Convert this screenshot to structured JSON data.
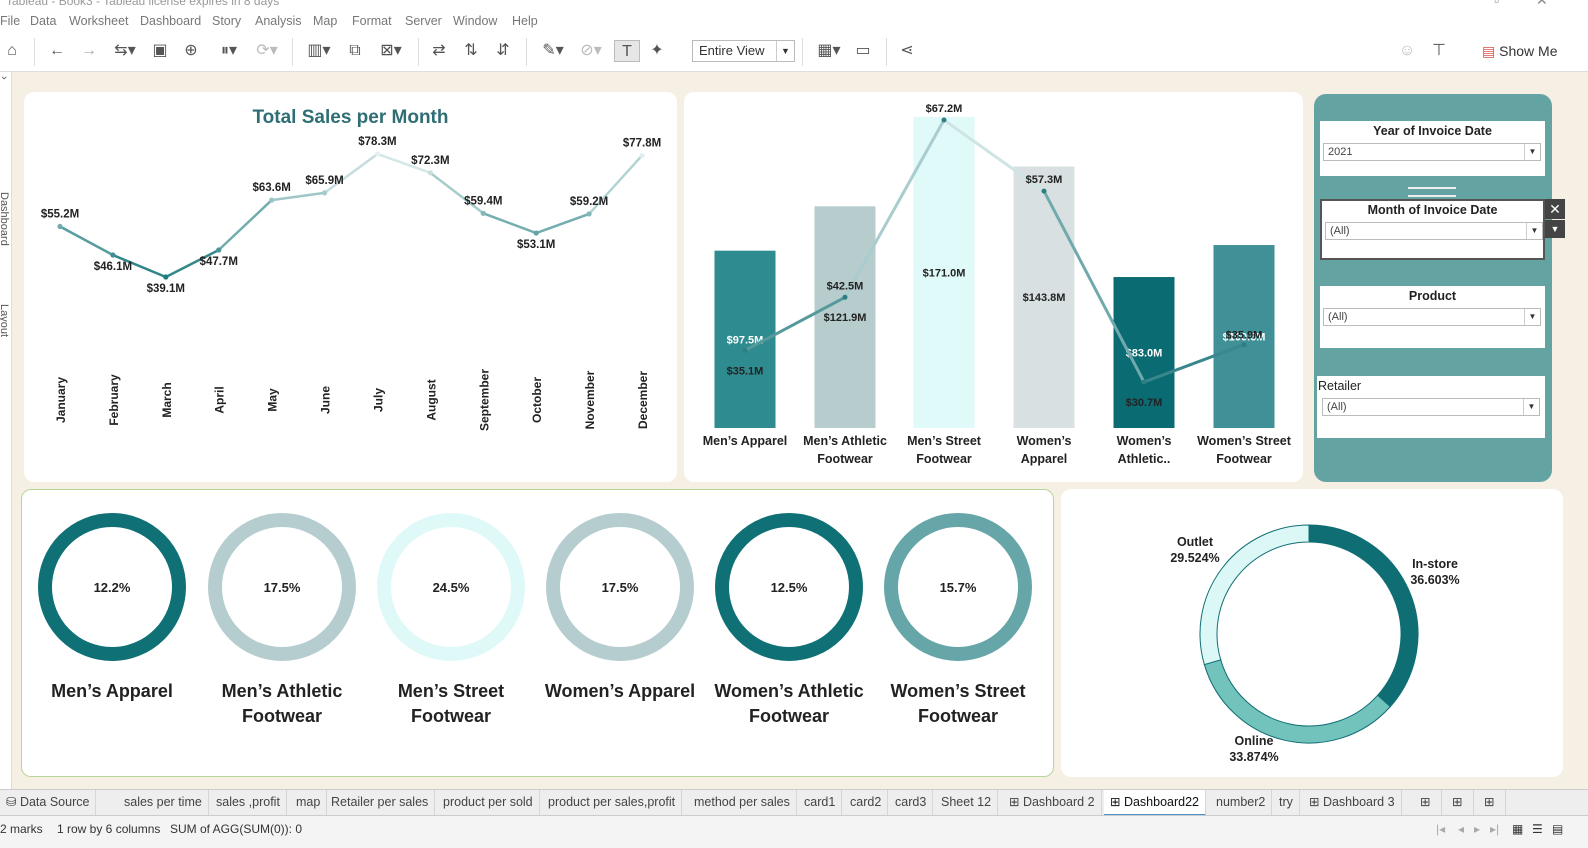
{
  "window": {
    "title": "Tableau - Book3 - Tableau license expires in 8 days"
  },
  "menu": [
    "File",
    "Data",
    "Worksheet",
    "Dashboard",
    "Story",
    "Analysis",
    "Map",
    "Format",
    "Server",
    "Window",
    "Help"
  ],
  "toolbar": {
    "fit_select": "Entire View",
    "show_me": "Show Me"
  },
  "side_tabs": {
    "dashboard": "Dashboard",
    "layout": "Layout"
  },
  "line_chart": {
    "title": "Total Sales per Month",
    "chart_data": {
      "type": "line",
      "x": [
        "January",
        "February",
        "March",
        "April",
        "May",
        "June",
        "July",
        "August",
        "September",
        "October",
        "November",
        "December"
      ],
      "values": [
        55.2,
        46.1,
        39.1,
        47.7,
        63.6,
        65.9,
        78.3,
        72.3,
        59.4,
        53.1,
        59.2,
        77.8
      ],
      "labels": [
        "$55.2M",
        "$46.1M",
        "$39.1M",
        "$47.7M",
        "$63.6M",
        "$65.9M",
        "$78.3M",
        "$72.3M",
        "$59.4M",
        "$53.1M",
        "$59.2M",
        "$77.8M"
      ],
      "color_low": "#1e7a7d",
      "color_high": "#e4f0f0"
    }
  },
  "bar_chart": {
    "chart_data": {
      "type": "bar",
      "categories": [
        "Men's Apparel",
        "Men's Athletic Footwear",
        "Men's Street Footwear",
        "Women's Apparel",
        "Women's Athletic..",
        "Women's Street Footwear"
      ],
      "category_lines": [
        [
          "Men’s Apparel"
        ],
        [
          "Men’s Athletic",
          "Footwear"
        ],
        [
          "Men’s Street",
          "Footwear"
        ],
        [
          "Women’s",
          "Apparel"
        ],
        [
          "Women’s",
          "Athletic.."
        ],
        [
          "Women’s Street",
          "Footwear"
        ]
      ],
      "bar_values": [
        97.5,
        121.9,
        171.0,
        143.8,
        83.0,
        100.6
      ],
      "bar_labels": [
        "$97.5M",
        "$121.9M",
        "$171.0M",
        "$143.8M",
        "$83.0M",
        "$100.6M"
      ],
      "line_values": [
        35.1,
        42.5,
        67.2,
        57.3,
        30.7,
        35.9
      ],
      "line_labels": [
        "$35.1M",
        "$42.5M",
        "$67.2M",
        "$57.3M",
        "$30.7M",
        "$35.9M"
      ],
      "bar_colors": [
        "#2e8b8f",
        "#b7cccd",
        "#e0f9f9",
        "#d9e0e1",
        "#0b6b73",
        "#3f9197"
      ],
      "label_colors": [
        "#ffffff",
        "#222222",
        "#222222",
        "#222222",
        "#ffffff",
        "#ffffff"
      ]
    }
  },
  "filters": [
    {
      "title": "Year of Invoice Date",
      "value": "2021"
    },
    {
      "title": "Month of Invoice Date",
      "value": "(All)"
    },
    {
      "title": "Product",
      "value": "(All)"
    },
    {
      "title": "Retailer",
      "value": "(All)"
    }
  ],
  "rings": {
    "chart_data": {
      "type": "pie",
      "names": [
        [
          "Men’s Apparel"
        ],
        [
          "Men’s Athletic",
          "Footwear"
        ],
        [
          "Men’s Street",
          "Footwear"
        ],
        [
          "Women’s Apparel"
        ],
        [
          "Women’s Athletic",
          "Footwear"
        ],
        [
          "Women’s Street",
          "Footwear"
        ]
      ],
      "values": [
        12.2,
        17.5,
        24.5,
        17.5,
        12.5,
        15.7
      ],
      "labels": [
        "12.2%",
        "17.5%",
        "24.5%",
        "17.5%",
        "12.5%",
        "15.7%"
      ],
      "colors": [
        "#0f7176",
        "#b6cdcf",
        "#dff9f8",
        "#b6cdcf",
        "#0f7176",
        "#66a6a9"
      ]
    }
  },
  "donut": {
    "chart_data": {
      "type": "pie",
      "categories": [
        "In-store",
        "Online",
        "Outlet"
      ],
      "values": [
        36.603,
        33.874,
        29.524
      ],
      "labels": [
        "36.603%",
        "33.874%",
        "29.524%"
      ],
      "colors": [
        "#0f6e74",
        "#73c3bd",
        "#dcf8f6"
      ]
    }
  },
  "tabs": [
    "Data Source",
    "sales per time",
    "sales ,profit",
    "map",
    "Retailer per sales",
    "product per sold",
    "product per sales,profit",
    "method per sales",
    "card1",
    "card2",
    "card3",
    "Sheet 12",
    "Dashboard 2",
    "Dashboard22",
    "number2",
    "try",
    "Dashboard 3"
  ],
  "active_tab": "Dashboard22",
  "status": {
    "marks": "2 marks",
    "rows": "1 row by 6 columns",
    "sum": "SUM of AGG(SUM(0)): 0"
  }
}
